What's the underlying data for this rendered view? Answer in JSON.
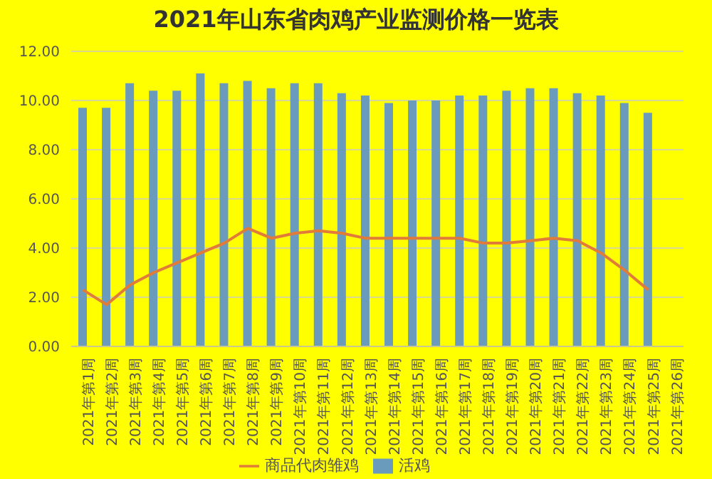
{
  "chart_data": {
    "type": "bar",
    "title": "2021年山东省肉鸡产业监测价格一览表",
    "categories": [
      "2021年第1周",
      "2021年第2周",
      "2021年第3周",
      "2021年第4周",
      "2021年第5周",
      "2021年第6周",
      "2021年第7周",
      "2021年第8周",
      "2021年第9周",
      "2021年第10周",
      "2021年第11周",
      "2021年第12周",
      "2021年第13周",
      "2021年第14周",
      "2021年第15周",
      "2021年第16周",
      "2021年第17周",
      "2021年第18周",
      "2021年第19周",
      "2021年第20周",
      "2021年第21周",
      "2021年第22周",
      "2021年第23周",
      "2021年第24周",
      "2021年第25周",
      "2021年第26周"
    ],
    "series": [
      {
        "name": "活鸡",
        "color": "#6a9bbd",
        "values": [
          9.7,
          9.7,
          10.7,
          10.4,
          10.4,
          11.1,
          10.7,
          10.8,
          10.5,
          10.7,
          10.7,
          10.3,
          10.2,
          9.9,
          10.0,
          10.0,
          10.2,
          10.2,
          10.4,
          10.5,
          10.5,
          10.3,
          10.2,
          9.9,
          9.5,
          null
        ]
      },
      {
        "name": "商品代肉雏鸡",
        "type": "line",
        "color": "#e07b39",
        "values": [
          2.3,
          1.7,
          2.5,
          3.0,
          3.4,
          3.8,
          4.2,
          4.8,
          4.4,
          4.6,
          4.7,
          4.6,
          4.4,
          4.4,
          4.4,
          4.4,
          4.4,
          4.2,
          4.2,
          4.3,
          4.4,
          4.3,
          3.8,
          3.1,
          2.3,
          null
        ]
      }
    ],
    "ylim": [
      0,
      12
    ],
    "yticks": [
      {
        "value": 0,
        "label": "0.00"
      },
      {
        "value": 2,
        "label": "2.00"
      },
      {
        "value": 4,
        "label": "4.00"
      },
      {
        "value": 6,
        "label": "6.00"
      },
      {
        "value": 8,
        "label": "8.00"
      },
      {
        "value": 10,
        "label": "10.00"
      },
      {
        "value": 12,
        "label": "12.00"
      }
    ],
    "grid": "y",
    "legend": "bottom",
    "marker": "none"
  }
}
